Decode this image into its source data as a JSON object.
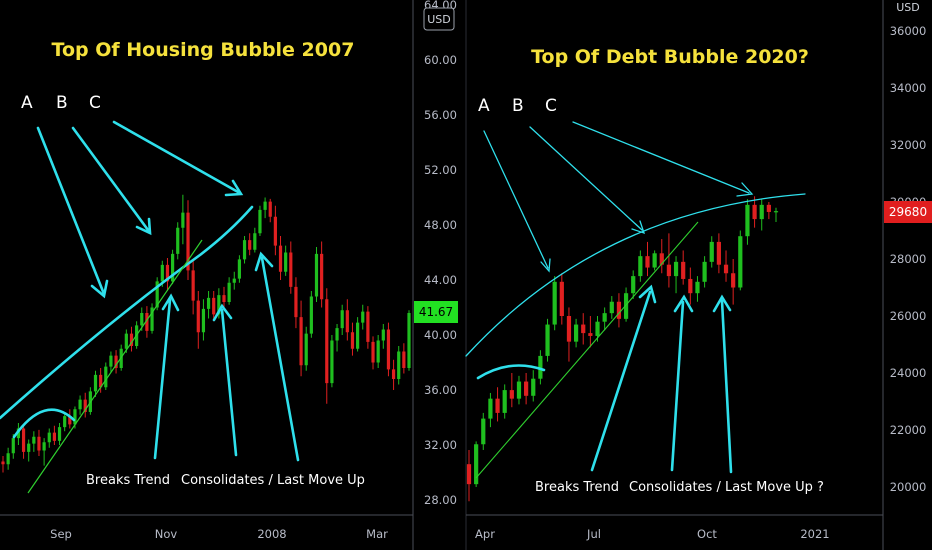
{
  "colors": {
    "background": "#000000",
    "up": "#1fbf1f",
    "down": "#e02020",
    "annotation": "#2fe0ec",
    "trendline": "#2fcf2f",
    "title": "#f5e13c",
    "axis_text": "#b8bcc8",
    "price_tag_left": "#22e022",
    "price_tag_right": "#e01e1e"
  },
  "chart_data": [
    {
      "type": "candlestick",
      "title": "Top Of Housing Bubble 2007",
      "currency": "USD",
      "ylim": [
        27,
        64
      ],
      "y_ticks": [
        28,
        32,
        36,
        40,
        44,
        48,
        52,
        56,
        60,
        64
      ],
      "y_tick_labels": [
        "28.00",
        "32.00",
        "36.00",
        "40.00",
        "44.00",
        "48.00",
        "52.00",
        "56.00",
        "60.00",
        "64.00"
      ],
      "x_labels": [
        "Sep",
        "Nov",
        "2008",
        "Mar"
      ],
      "last_price": "41.67",
      "letters": [
        "A",
        "B",
        "C"
      ],
      "notes": [
        "Breaks Trend",
        "Consolidates / Last Move Up"
      ],
      "ohlc": [
        [
          30.8,
          31.2,
          30.0,
          30.6
        ],
        [
          30.6,
          31.8,
          30.2,
          31.4
        ],
        [
          31.4,
          32.8,
          31.0,
          32.5
        ],
        [
          32.5,
          33.6,
          32.0,
          33.2
        ],
        [
          33.2,
          33.5,
          31.0,
          31.5
        ],
        [
          31.5,
          32.4,
          30.8,
          32.1
        ],
        [
          32.1,
          33.0,
          31.5,
          32.6
        ],
        [
          32.6,
          33.1,
          31.2,
          31.6
        ],
        [
          31.6,
          32.5,
          30.5,
          32.2
        ],
        [
          32.2,
          33.2,
          31.8,
          32.9
        ],
        [
          32.9,
          33.4,
          32.0,
          32.3
        ],
        [
          32.3,
          33.6,
          32.0,
          33.3
        ],
        [
          33.3,
          34.4,
          33.0,
          34.1
        ],
        [
          34.1,
          34.6,
          33.2,
          33.5
        ],
        [
          33.5,
          34.8,
          33.2,
          34.6
        ],
        [
          34.6,
          35.6,
          34.2,
          35.3
        ],
        [
          35.3,
          35.8,
          34.0,
          34.4
        ],
        [
          34.4,
          36.2,
          34.2,
          35.9
        ],
        [
          35.9,
          37.4,
          35.5,
          37.1
        ],
        [
          37.1,
          37.6,
          35.8,
          36.2
        ],
        [
          36.2,
          38.0,
          36.0,
          37.7
        ],
        [
          37.7,
          38.8,
          37.3,
          38.5
        ],
        [
          38.5,
          38.9,
          37.2,
          37.6
        ],
        [
          37.6,
          39.3,
          37.4,
          39.0
        ],
        [
          39.0,
          40.4,
          38.7,
          40.1
        ],
        [
          40.1,
          40.6,
          38.8,
          39.2
        ],
        [
          39.2,
          41.0,
          39.0,
          40.7
        ],
        [
          40.7,
          42.0,
          40.3,
          41.6
        ],
        [
          41.6,
          42.1,
          39.8,
          40.3
        ],
        [
          40.3,
          42.3,
          40.1,
          42.0
        ],
        [
          42.0,
          44.2,
          41.8,
          43.9
        ],
        [
          43.9,
          45.4,
          43.5,
          45.1
        ],
        [
          45.1,
          45.6,
          43.2,
          43.9
        ],
        [
          43.9,
          46.2,
          43.7,
          45.9
        ],
        [
          45.9,
          48.2,
          45.5,
          47.8
        ],
        [
          47.8,
          50.2,
          46.6,
          48.9
        ],
        [
          48.9,
          49.8,
          44.0,
          44.7
        ],
        [
          44.7,
          45.5,
          41.5,
          42.5
        ],
        [
          42.5,
          43.2,
          39.0,
          40.2
        ],
        [
          40.2,
          42.6,
          39.6,
          41.9
        ],
        [
          41.9,
          43.2,
          41.2,
          42.7
        ],
        [
          42.7,
          43.2,
          41.0,
          41.5
        ],
        [
          41.5,
          43.4,
          41.2,
          42.9
        ],
        [
          42.9,
          43.5,
          42.0,
          42.4
        ],
        [
          42.4,
          44.2,
          42.2,
          43.8
        ],
        [
          43.8,
          44.6,
          43.3,
          44.1
        ],
        [
          44.1,
          45.8,
          43.8,
          45.5
        ],
        [
          45.5,
          47.2,
          45.2,
          46.9
        ],
        [
          46.9,
          47.4,
          45.8,
          46.2
        ],
        [
          46.2,
          47.8,
          46.0,
          47.4
        ],
        [
          47.4,
          49.4,
          47.2,
          49.1
        ],
        [
          49.1,
          50.0,
          48.5,
          49.7
        ],
        [
          49.7,
          49.9,
          48.2,
          48.6
        ],
        [
          48.6,
          49.4,
          45.8,
          46.5
        ],
        [
          46.5,
          47.2,
          44.0,
          44.6
        ],
        [
          44.6,
          46.5,
          44.3,
          46.0
        ],
        [
          46.0,
          46.8,
          43.0,
          43.5
        ],
        [
          43.5,
          44.2,
          40.5,
          41.3
        ],
        [
          41.3,
          42.5,
          37.0,
          37.8
        ],
        [
          37.8,
          40.6,
          37.4,
          40.1
        ],
        [
          40.1,
          43.2,
          39.8,
          42.8
        ],
        [
          42.8,
          46.4,
          42.4,
          45.9
        ],
        [
          45.9,
          46.8,
          42.0,
          42.6
        ],
        [
          42.6,
          43.4,
          35.0,
          36.5
        ],
        [
          36.5,
          40.0,
          36.2,
          39.6
        ],
        [
          39.6,
          40.8,
          38.8,
          40.5
        ],
        [
          40.5,
          42.2,
          40.0,
          41.8
        ],
        [
          41.8,
          42.6,
          39.6,
          40.2
        ],
        [
          40.2,
          40.9,
          38.5,
          39.0
        ],
        [
          39.0,
          41.3,
          38.8,
          40.9
        ],
        [
          40.9,
          42.2,
          40.4,
          41.7
        ],
        [
          41.7,
          42.1,
          39.0,
          39.5
        ],
        [
          39.5,
          39.9,
          37.5,
          38.0
        ],
        [
          38.0,
          40.0,
          37.6,
          39.6
        ],
        [
          39.6,
          40.8,
          39.0,
          40.4
        ],
        [
          40.4,
          40.9,
          37.0,
          37.5
        ],
        [
          37.5,
          38.2,
          36.0,
          36.8
        ],
        [
          36.8,
          39.2,
          36.4,
          38.8
        ],
        [
          38.8,
          39.4,
          37.2,
          37.6
        ],
        [
          37.6,
          41.8,
          37.4,
          41.6
        ]
      ]
    },
    {
      "type": "candlestick",
      "title": "Top Of Debt Bubble 2020?",
      "currency": "USD",
      "ylim": [
        19000,
        37000
      ],
      "y_ticks": [
        20000,
        22000,
        24000,
        26000,
        28000,
        30000,
        32000,
        34000,
        36000
      ],
      "y_tick_labels": [
        "20000",
        "22000",
        "24000",
        "26000",
        "28000",
        "30000",
        "32000",
        "34000",
        "36000"
      ],
      "x_labels": [
        "Apr",
        "Jul",
        "Oct",
        "2021"
      ],
      "last_price": "29680",
      "letters": [
        "A",
        "B",
        "C"
      ],
      "notes": [
        "Breaks Trend",
        "Consolidates / Last Move Up ?"
      ],
      "ohlc": [
        [
          20800,
          21300,
          19500,
          20100
        ],
        [
          20100,
          21600,
          20000,
          21500
        ],
        [
          21500,
          22600,
          21300,
          22400
        ],
        [
          22400,
          23300,
          22100,
          23100
        ],
        [
          23100,
          23500,
          22300,
          22600
        ],
        [
          22600,
          23600,
          22400,
          23400
        ],
        [
          23400,
          24000,
          22800,
          23100
        ],
        [
          23100,
          23900,
          22900,
          23700
        ],
        [
          23700,
          24000,
          22900,
          23200
        ],
        [
          23200,
          24100,
          23000,
          23800
        ],
        [
          23800,
          24800,
          23600,
          24600
        ],
        [
          24600,
          25900,
          24400,
          25700
        ],
        [
          25700,
          27400,
          25500,
          27200
        ],
        [
          27200,
          27500,
          25700,
          26000
        ],
        [
          26000,
          26300,
          24400,
          25100
        ],
        [
          25100,
          25900,
          24900,
          25700
        ],
        [
          25700,
          26100,
          25000,
          25400
        ],
        [
          25400,
          26000,
          24900,
          25300
        ],
        [
          25300,
          26000,
          25100,
          25800
        ],
        [
          25800,
          26300,
          25500,
          26100
        ],
        [
          26100,
          26700,
          25900,
          26500
        ],
        [
          26500,
          26800,
          25600,
          25900
        ],
        [
          25900,
          27000,
          25800,
          26800
        ],
        [
          26800,
          27600,
          26600,
          27400
        ],
        [
          27400,
          28300,
          27200,
          28100
        ],
        [
          28100,
          28600,
          27400,
          27700
        ],
        [
          27700,
          28300,
          27600,
          28200
        ],
        [
          28200,
          28700,
          27500,
          27800
        ],
        [
          27800,
          28900,
          27000,
          27400
        ],
        [
          27400,
          28100,
          26800,
          27900
        ],
        [
          27900,
          28300,
          27100,
          27300
        ],
        [
          27300,
          27700,
          26400,
          26800
        ],
        [
          26800,
          27400,
          26500,
          27200
        ],
        [
          27200,
          28100,
          27000,
          27900
        ],
        [
          27900,
          28800,
          27700,
          28600
        ],
        [
          28600,
          28900,
          27500,
          27800
        ],
        [
          27800,
          28300,
          27200,
          27500
        ],
        [
          27500,
          28000,
          26400,
          27000
        ],
        [
          27000,
          29000,
          26900,
          28800
        ],
        [
          28800,
          30100,
          28500,
          29900
        ],
        [
          29900,
          30200,
          29100,
          29400
        ],
        [
          29400,
          30100,
          29000,
          29900
        ],
        [
          29900,
          30000,
          29400,
          29650
        ],
        [
          29650,
          29800,
          29300,
          29680
        ]
      ]
    }
  ]
}
